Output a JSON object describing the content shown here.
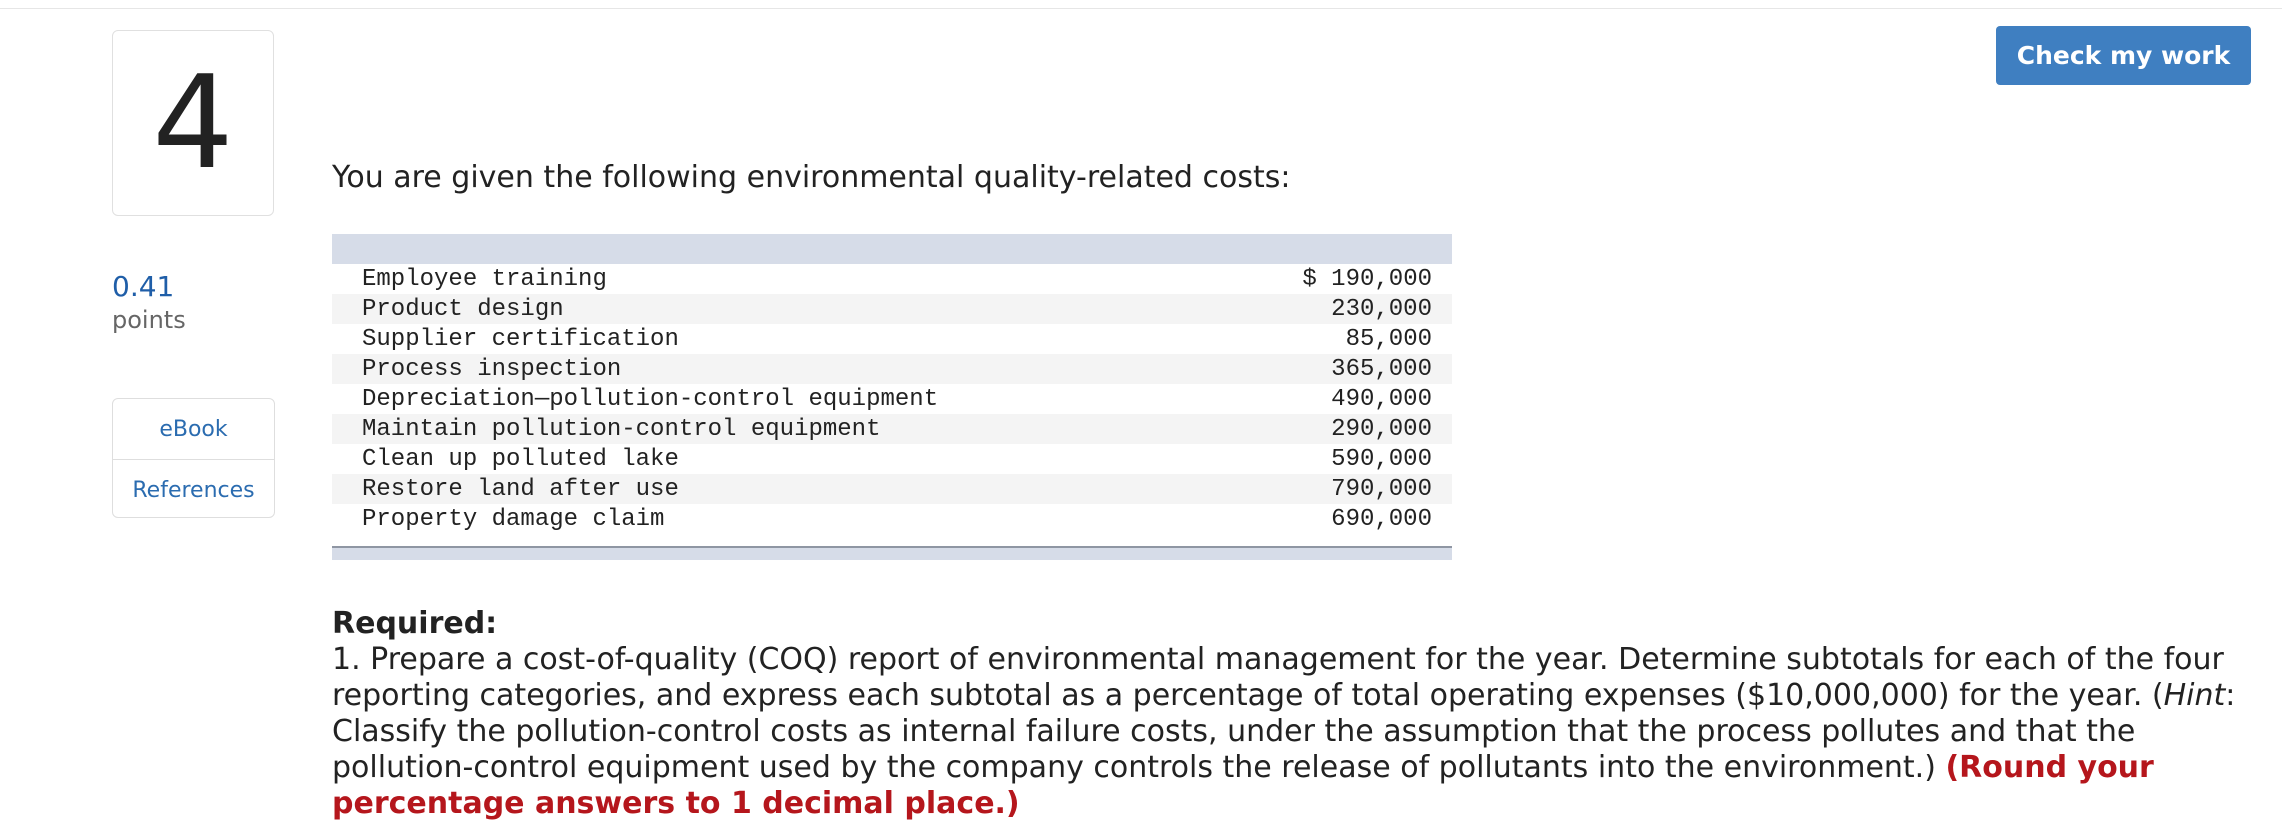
{
  "question": {
    "number": "4",
    "points_value": "0.41",
    "points_label": "points"
  },
  "resources": {
    "ebook": "eBook",
    "references": "References"
  },
  "check_button": "Check my work",
  "intro": "You are given the following environmental quality-related costs:",
  "cost_rows": [
    {
      "label": "Employee training",
      "amount": "$ 190,000"
    },
    {
      "label": "Product design",
      "amount": "230,000"
    },
    {
      "label": "Supplier certification",
      "amount": "85,000"
    },
    {
      "label": "Process inspection",
      "amount": "365,000"
    },
    {
      "label": "Depreciation—pollution-control equipment",
      "amount": "490,000"
    },
    {
      "label": "Maintain pollution-control equipment",
      "amount": "290,000"
    },
    {
      "label": "Clean up polluted lake",
      "amount": "590,000"
    },
    {
      "label": "Restore land after use",
      "amount": "790,000"
    },
    {
      "label": "Property damage claim",
      "amount": "690,000"
    }
  ],
  "required": {
    "heading": "Required:",
    "text_part1": "1. Prepare a cost-of-quality (COQ) report of environmental management for the year. Determine subtotals for each of the four reporting categories, and express each subtotal as a percentage of total operating expenses ($10,000,000) for the year. (",
    "hint_word": "Hint",
    "text_part2": ": Classify the pollution-control costs as internal failure costs, under the assumption that the process pollutes and that the pollution-control equipment used by the company controls the release of pollutants into the environment.) ",
    "round_note": "(Round your percentage answers to 1 decimal place.)"
  },
  "colors": {
    "accent": "#3f7fc1",
    "link": "#2b6cb0",
    "warning": "#b5161c",
    "table_band": "#d6dce8"
  }
}
